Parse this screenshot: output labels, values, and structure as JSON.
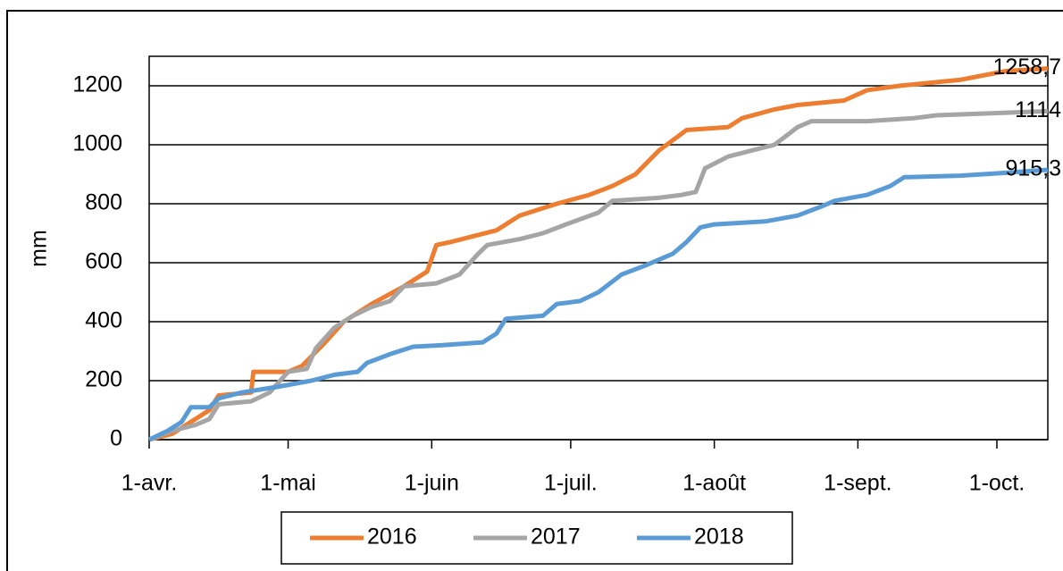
{
  "chart_data": {
    "type": "line",
    "y_label": "mm",
    "xlim": [
      0,
      194
    ],
    "xticks": [
      {
        "value": 0,
        "label": "1-avr."
      },
      {
        "value": 30,
        "label": "1-mai"
      },
      {
        "value": 61,
        "label": "1-juin"
      },
      {
        "value": 91,
        "label": "1-juil."
      },
      {
        "value": 122,
        "label": "1-août"
      },
      {
        "value": 153,
        "label": "1-sept."
      },
      {
        "value": 183,
        "label": "1-oct."
      }
    ],
    "ylim": [
      0,
      1300
    ],
    "yticks": [
      0,
      200,
      400,
      600,
      800,
      1000,
      1200
    ],
    "grid": true,
    "legend": "bottom",
    "series": [
      {
        "name": "2016",
        "color": "#ed7d31",
        "x": [
          0,
          5,
          8,
          13,
          15,
          22,
          22.5,
          30,
          33,
          38,
          42,
          48,
          55,
          60,
          62,
          65,
          70,
          75,
          80,
          88,
          95,
          100,
          105,
          110,
          116,
          125,
          128,
          135,
          140,
          150,
          155,
          162,
          175,
          185,
          194
        ],
        "values": [
          0,
          20,
          50,
          100,
          150,
          160,
          230,
          230,
          250,
          330,
          400,
          460,
          520,
          570,
          660,
          670,
          690,
          710,
          760,
          800,
          830,
          860,
          900,
          980,
          1050,
          1060,
          1090,
          1120,
          1135,
          1150,
          1185,
          1200,
          1220,
          1250,
          1258.7
        ],
        "value_labels": [
          null,
          null,
          null,
          null,
          null,
          null,
          null,
          null,
          null,
          null,
          null,
          null,
          null,
          null,
          null,
          null,
          null,
          null,
          null,
          null,
          null,
          null,
          null,
          null,
          null,
          null,
          null,
          null,
          null,
          null,
          null,
          null,
          null,
          null,
          "1258,7"
        ]
      },
      {
        "name": "2017",
        "color": "#a5a5a5",
        "x": [
          0,
          5,
          10,
          13,
          15,
          22,
          26,
          30,
          34,
          36,
          40,
          44,
          48,
          52,
          55,
          62,
          67,
          71,
          73,
          80,
          85,
          90,
          97,
          100,
          110,
          115,
          118,
          120,
          125,
          130,
          135,
          140,
          143,
          155,
          165,
          170,
          194
        ],
        "values": [
          0,
          30,
          50,
          70,
          120,
          130,
          160,
          230,
          240,
          310,
          380,
          420,
          450,
          470,
          520,
          530,
          560,
          630,
          660,
          680,
          700,
          730,
          770,
          810,
          820,
          830,
          840,
          920,
          960,
          980,
          1000,
          1060,
          1080,
          1080,
          1090,
          1100,
          1114
        ],
        "value_labels": [
          null,
          null,
          null,
          null,
          null,
          null,
          null,
          null,
          null,
          null,
          null,
          null,
          null,
          null,
          null,
          null,
          null,
          null,
          null,
          null,
          null,
          null,
          null,
          null,
          null,
          null,
          null,
          null,
          null,
          null,
          null,
          null,
          null,
          null,
          null,
          null,
          "1114"
        ]
      },
      {
        "name": "2018",
        "color": "#5b9bd5",
        "x": [
          0,
          4,
          7,
          9,
          13,
          15,
          20,
          28,
          35,
          40,
          45,
          47,
          52,
          57,
          63,
          72,
          75,
          77,
          85,
          88,
          93,
          97,
          102,
          107,
          113,
          116,
          119,
          122,
          133,
          140,
          145,
          148,
          155,
          160,
          163,
          175,
          185,
          194
        ],
        "values": [
          0,
          30,
          60,
          110,
          110,
          140,
          160,
          180,
          200,
          220,
          230,
          260,
          290,
          315,
          320,
          330,
          360,
          410,
          420,
          460,
          470,
          500,
          560,
          590,
          630,
          670,
          720,
          730,
          740,
          760,
          790,
          810,
          830,
          860,
          890,
          895,
          905,
          915.3
        ],
        "value_labels": [
          null,
          null,
          null,
          null,
          null,
          null,
          null,
          null,
          null,
          null,
          null,
          null,
          null,
          null,
          null,
          null,
          null,
          null,
          null,
          null,
          null,
          null,
          null,
          null,
          null,
          null,
          null,
          null,
          null,
          null,
          null,
          null,
          null,
          null,
          null,
          null,
          null,
          "915,3"
        ]
      }
    ]
  }
}
